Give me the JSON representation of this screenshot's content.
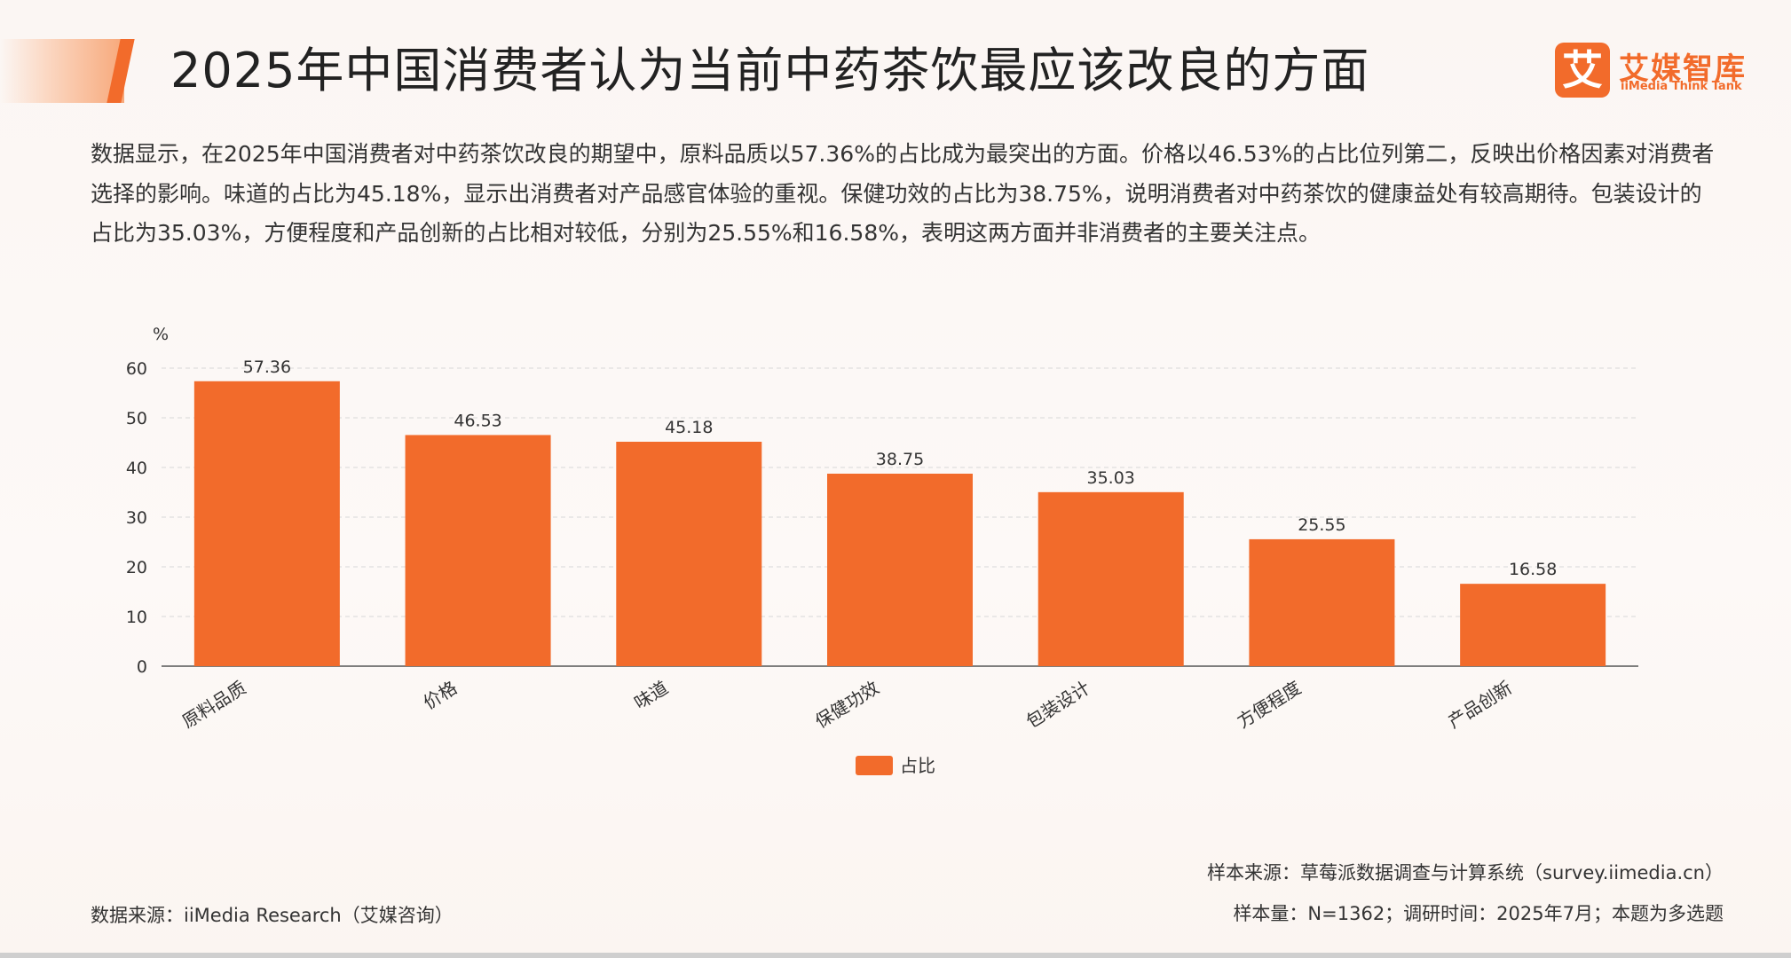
{
  "header": {
    "title": "2025年中国消费者认为当前中药茶饮最应该改良的方面",
    "logo_mark": "艾",
    "logo_cn": "艾媒智库",
    "logo_en": "iiMedia Think Tank"
  },
  "description": "数据显示，在2025年中国消费者对中药茶饮改良的期望中，原料品质以57.36%的占比成为最突出的方面。价格以46.53%的占比位列第二，反映出价格因素对消费者选择的影响。味道的占比为45.18%，显示出消费者对产品感官体验的重视。保健功效的占比为38.75%，说明消费者对中药茶饮的健康益处有较高期待。包装设计的占比为35.03%，方便程度和产品创新的占比相对较低，分别为25.55%和16.58%，表明这两方面并非消费者的主要关注点。",
  "chart_data": {
    "type": "bar",
    "categories": [
      "原料品质",
      "价格",
      "味道",
      "保健功效",
      "包装设计",
      "方便程度",
      "产品创新"
    ],
    "series": [
      {
        "name": "占比",
        "values": [
          57.36,
          46.53,
          45.18,
          38.75,
          35.03,
          25.55,
          16.58
        ]
      }
    ],
    "ylabel": "%",
    "ylim": [
      0,
      60
    ],
    "yticks": [
      0,
      10,
      20,
      30,
      40,
      50,
      60
    ],
    "grid": true,
    "legend_position": "bottom-center",
    "bar_color": "#F26B2B"
  },
  "footer": {
    "data_source": "数据来源：iiMedia Research（艾媒咨询）",
    "sample_source": "样本来源：草莓派数据调查与计算系统（survey.iimedia.cn）",
    "sample_info": "样本量：N=1362；调研时间：2025年7月；本题为多选题"
  }
}
